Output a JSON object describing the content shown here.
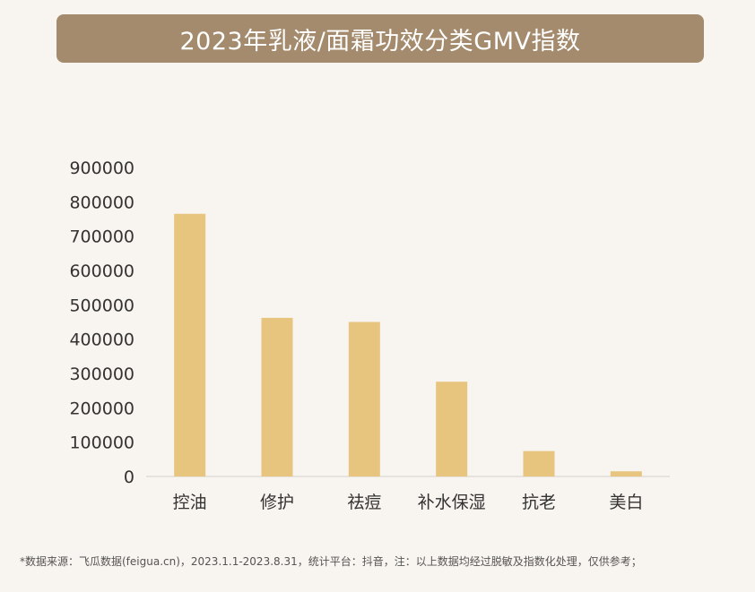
{
  "title": "2023年乳液/面霜功效分类GMV指数",
  "footnote": "*数据来源：飞瓜数据(feigua.cn)，2023.1.1-2023.8.31，统计平台：抖音，注：以上数据均经过脱敏及指数化处理，仅供参考；",
  "colors": {
    "title_bg": "#a48b6d",
    "bar": "#e8c57f",
    "background": "#f8f4ef"
  },
  "chart_data": {
    "type": "bar",
    "title": "2023年乳液/面霜功效分类GMV指数",
    "categories": [
      "控油",
      "修护",
      "祛痘",
      "补水保湿",
      "抗老",
      "美白"
    ],
    "values": [
      765000,
      462000,
      450000,
      276000,
      74000,
      15000
    ],
    "ylim": [
      0,
      900000
    ],
    "yticks": [
      0,
      100000,
      200000,
      300000,
      400000,
      500000,
      600000,
      700000,
      800000,
      900000
    ],
    "ytick_labels": [
      "0",
      "100000",
      "200000",
      "300000",
      "400000",
      "500000",
      "600000",
      "700000",
      "800000",
      "900000"
    ],
    "grid": false,
    "legend": "none"
  }
}
